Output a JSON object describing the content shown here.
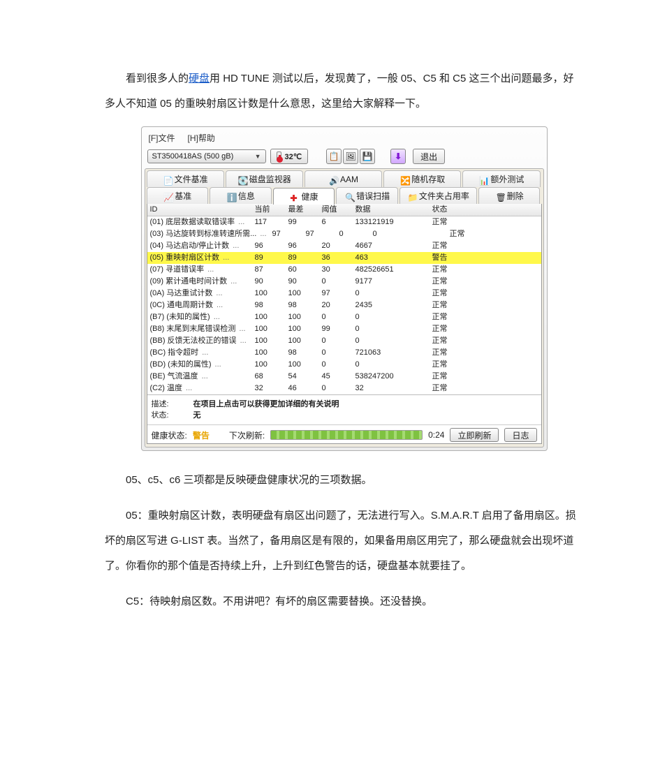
{
  "article": {
    "p1_a": "看到很多人的",
    "p1_link": "硬盘",
    "p1_b": "用 HD  TUNE 测试以后，发现黄了，一般 05、C5 和 C5 这三个出问题最多，好多人不知道 05 的重映射扇区计数是什么意思，这里给大家解释一下。",
    "p2": "05、c5、c6 三项都是反映硬盘健康状况的三项数据。",
    "p3": "05：重映射扇区计数，表明硬盘有扇区出问题了，无法进行写入。S.M.A.R.T 启用了备用扇区。损坏的扇区写进 G-LIST 表。当然了，备用扇区是有限的，如果备用扇区用完了，那么硬盘就会出现坏道了。你看你的那个值是否持续上升，上升到红色警告的话，硬盘基本就要挂了。",
    "p4": "C5：待映射扇区数。不用讲吧？有坏的扇区需要替换。还没替换。"
  },
  "window": {
    "menu": {
      "file": "[F]文件",
      "help": "[H]帮助"
    },
    "drive": "ST3500418AS (500 gB)",
    "temperature": "32℃",
    "exit_btn": "退出",
    "toolbar_icons": {
      "copy": "📋",
      "shot": "🖼",
      "save": "💾",
      "up": "⬆"
    },
    "tabs_row1": [
      {
        "icon": "📄",
        "label": "文件基准"
      },
      {
        "icon": "💽",
        "label": "磁盘监视器"
      },
      {
        "icon": "🔊",
        "label": "AAM"
      },
      {
        "icon": "🔀",
        "label": "随机存取"
      },
      {
        "icon": "📊",
        "label": "额外测试"
      }
    ],
    "tabs_row2": [
      {
        "icon": "📈",
        "label": "基准"
      },
      {
        "icon": "ℹ️",
        "label": "信息"
      },
      {
        "icon": "✚",
        "label": "健康",
        "active": true,
        "red": true
      },
      {
        "icon": "🔍",
        "label": "错误扫描"
      },
      {
        "icon": "📁",
        "label": "文件夹占用率"
      },
      {
        "icon": "🗑",
        "label": "删除"
      }
    ],
    "table": {
      "headers": {
        "id": "ID",
        "cur": "当前",
        "wor": "最差",
        "thr": "阈值",
        "data": "数据",
        "stat": "状态"
      },
      "rows": [
        {
          "id": "(01) 底层数据读取错误率",
          "cur": "117",
          "wor": "99",
          "thr": "6",
          "data": "133121919",
          "stat": "正常"
        },
        {
          "id": "(03) 马达旋转到标准转速所需...",
          "cur": "97",
          "wor": "97",
          "thr": "0",
          "data": "0",
          "stat": "正常"
        },
        {
          "id": "(04) 马达启动/停止计数",
          "cur": "96",
          "wor": "96",
          "thr": "20",
          "data": "4667",
          "stat": "正常"
        },
        {
          "id": "(05) 重映射扇区计数",
          "cur": "89",
          "wor": "89",
          "thr": "36",
          "data": "463",
          "stat": "警告",
          "hl": true
        },
        {
          "id": "(07) 寻道错误率",
          "cur": "87",
          "wor": "60",
          "thr": "30",
          "data": "482526651",
          "stat": "正常"
        },
        {
          "id": "(09) 累计通电时间计数",
          "cur": "90",
          "wor": "90",
          "thr": "0",
          "data": "9177",
          "stat": "正常"
        },
        {
          "id": "(0A) 马达重试计数",
          "cur": "100",
          "wor": "100",
          "thr": "97",
          "data": "0",
          "stat": "正常"
        },
        {
          "id": "(0C) 通电周期计数",
          "cur": "98",
          "wor": "98",
          "thr": "20",
          "data": "2435",
          "stat": "正常"
        },
        {
          "id": "(B7) (未知的属性)",
          "cur": "100",
          "wor": "100",
          "thr": "0",
          "data": "0",
          "stat": "正常"
        },
        {
          "id": "(B8) 末尾到末尾错误检测",
          "cur": "100",
          "wor": "100",
          "thr": "99",
          "data": "0",
          "stat": "正常"
        },
        {
          "id": "(BB) 反馈无法校正的错误",
          "cur": "100",
          "wor": "100",
          "thr": "0",
          "data": "0",
          "stat": "正常"
        },
        {
          "id": "(BC) 指令超时",
          "cur": "100",
          "wor": "98",
          "thr": "0",
          "data": "721063",
          "stat": "正常"
        },
        {
          "id": "(BD) (未知的属性)",
          "cur": "100",
          "wor": "100",
          "thr": "0",
          "data": "0",
          "stat": "正常"
        },
        {
          "id": "(BE) 气流温度",
          "cur": "68",
          "wor": "54",
          "thr": "45",
          "data": "538247200",
          "stat": "正常"
        },
        {
          "id": "(C2) 温度",
          "cur": "32",
          "wor": "46",
          "thr": "0",
          "data": "32",
          "stat": "正常"
        }
      ]
    },
    "desc": {
      "desc_label": "描述:",
      "desc_val": "在项目上点击可以获得更加详细的有关说明",
      "status_label": "状态:",
      "status_val": "无"
    },
    "bottom": {
      "health_label": "健康状态:",
      "health_val": "警告",
      "refresh_label": "下次刷新:",
      "time": "0:24",
      "refresh_btn": "立即刷新",
      "log_btn": "日志"
    },
    "highlight_color": "#fff84a"
  }
}
